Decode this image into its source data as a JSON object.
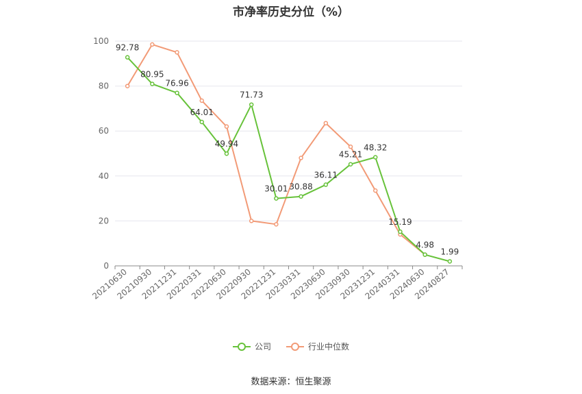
{
  "title": "市净率历史分位（%）",
  "source": "数据来源：恒生聚源",
  "colors": {
    "company": "#67c23a",
    "industry": "#f29a76",
    "grid": "#e6e6ee",
    "axis": "#666666"
  },
  "chart_data": {
    "type": "line",
    "title": "市净率历史分位（%）",
    "xlabel": "",
    "ylabel": "",
    "ylim": [
      0,
      100
    ],
    "yticks": [
      0,
      20,
      40,
      60,
      80,
      100
    ],
    "grid": true,
    "legend": "bottom",
    "categories": [
      "20210630",
      "20210930",
      "20211231",
      "20220331",
      "20220630",
      "20220930",
      "20221231",
      "20230331",
      "20230630",
      "20230930",
      "20231231",
      "20240331",
      "20240630",
      "20240827"
    ],
    "series": [
      {
        "name": "公司",
        "color": "#67c23a",
        "show_labels": true,
        "values": [
          92.78,
          80.95,
          76.96,
          64.01,
          49.94,
          71.73,
          30.01,
          30.88,
          36.11,
          45.21,
          48.32,
          15.19,
          4.98,
          1.99
        ]
      },
      {
        "name": "行业中位数",
        "color": "#f29a76",
        "show_labels": false,
        "values": [
          80,
          98.5,
          95,
          73.5,
          62,
          20,
          18.5,
          48,
          63.5,
          53,
          33.5,
          14,
          5,
          null
        ]
      }
    ]
  }
}
